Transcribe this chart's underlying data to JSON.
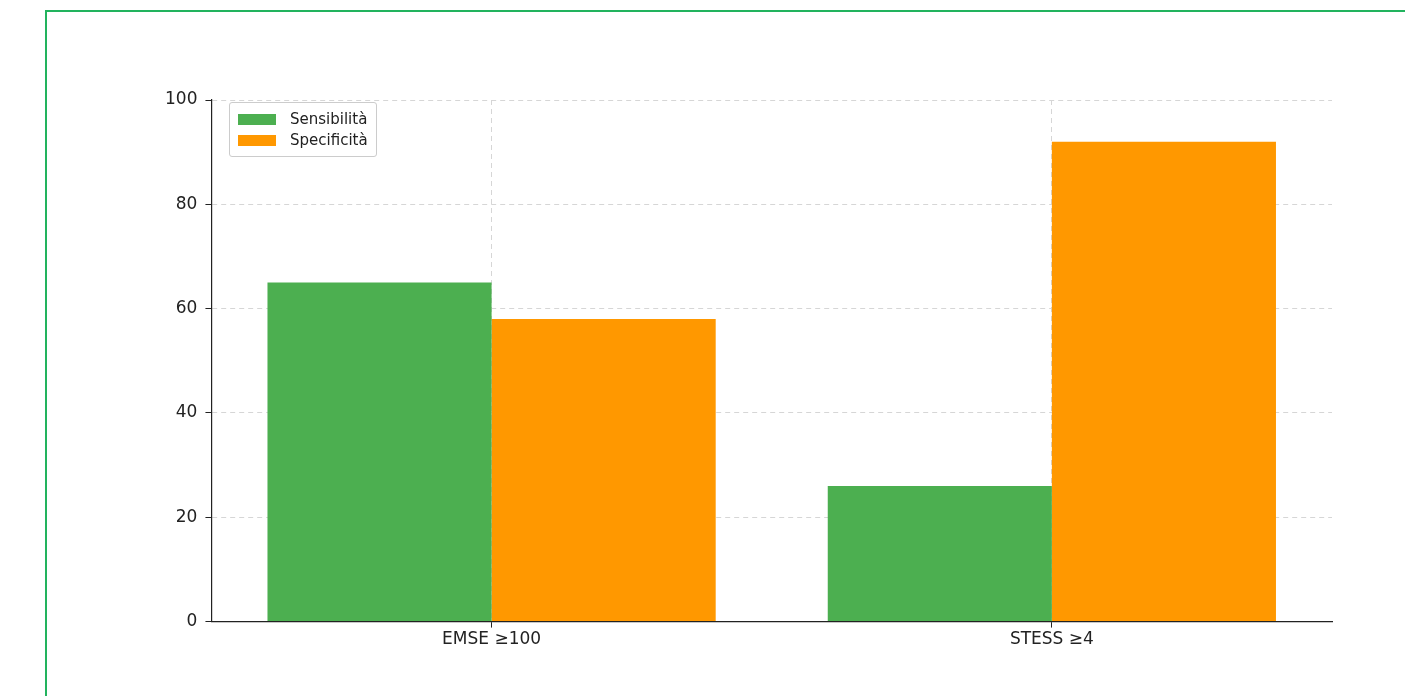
{
  "chart_data": {
    "type": "bar",
    "categories": [
      "EMSE ≥100",
      "STESS ≥4"
    ],
    "series": [
      {
        "name": "Sensibilità",
        "color": "#4caf50",
        "values": [
          65,
          26
        ]
      },
      {
        "name": "Specificità",
        "color": "#ff9800",
        "values": [
          58,
          92
        ]
      }
    ],
    "ylim": [
      0,
      100
    ],
    "yticks": [
      0,
      20,
      40,
      60,
      80,
      100
    ],
    "grid": true,
    "legend": "top left"
  }
}
